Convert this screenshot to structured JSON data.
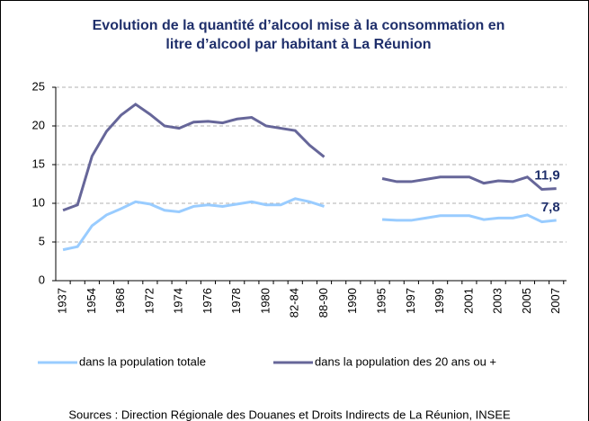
{
  "chart_data": {
    "type": "line",
    "title": [
      "Evolution de la quantité d’alcool mise à la consommation en",
      "litre d’alcool par habitant à La Réunion"
    ],
    "categories": [
      "1937",
      null,
      "1954",
      null,
      "1968",
      null,
      "1972",
      null,
      "1974",
      null,
      "1976",
      null,
      "1978",
      null,
      "1980",
      null,
      "82-84",
      null,
      "88-90",
      null,
      "1990",
      null,
      "1995",
      null,
      "1997",
      null,
      "1999",
      null,
      "2001",
      null,
      "2003",
      null,
      "2005",
      null,
      "2007"
    ],
    "series": [
      {
        "name": "dans la population totale",
        "color": "#99ccff",
        "values": [
          4.0,
          4.4,
          7.1,
          8.5,
          9.3,
          10.2,
          9.9,
          9.1,
          8.9,
          9.6,
          9.8,
          9.6,
          9.9,
          10.2,
          9.8,
          9.8,
          10.6,
          10.2,
          9.6,
          null,
          null,
          null,
          7.9,
          7.8,
          7.8,
          8.1,
          8.4,
          8.4,
          8.4,
          7.9,
          8.1,
          8.1,
          8.5,
          7.6,
          7.8
        ],
        "value_labels": [
          null,
          null,
          null,
          null,
          null,
          null,
          null,
          null,
          null,
          null,
          null,
          null,
          null,
          null,
          null,
          null,
          null,
          null,
          null,
          null,
          null,
          null,
          null,
          null,
          null,
          null,
          null,
          null,
          null,
          null,
          null,
          null,
          null,
          null,
          "7,8"
        ]
      },
      {
        "name": "dans la population des 20 ans ou +",
        "color": "#666699",
        "values": [
          9.1,
          9.8,
          16.1,
          19.3,
          21.4,
          22.8,
          21.5,
          20.0,
          19.7,
          20.5,
          20.6,
          20.4,
          20.9,
          21.1,
          20.0,
          19.7,
          19.4,
          17.5,
          16.0,
          null,
          null,
          null,
          13.2,
          12.8,
          12.8,
          13.1,
          13.4,
          13.4,
          13.4,
          12.6,
          12.9,
          12.8,
          13.4,
          11.8,
          11.9
        ],
        "value_labels": [
          null,
          null,
          null,
          null,
          null,
          null,
          null,
          null,
          null,
          null,
          null,
          null,
          null,
          null,
          null,
          null,
          null,
          null,
          null,
          null,
          null,
          null,
          null,
          null,
          null,
          null,
          null,
          null,
          null,
          null,
          null,
          null,
          null,
          null,
          "11,9"
        ]
      }
    ],
    "ylim": [
      0,
      25
    ],
    "yticks": [
      0,
      5,
      10,
      15,
      20,
      25
    ],
    "grid": true,
    "legend": "bottom",
    "source": "Sources : Direction Régionale des Douanes et Droits Indirects de La Réunion, INSEE"
  }
}
